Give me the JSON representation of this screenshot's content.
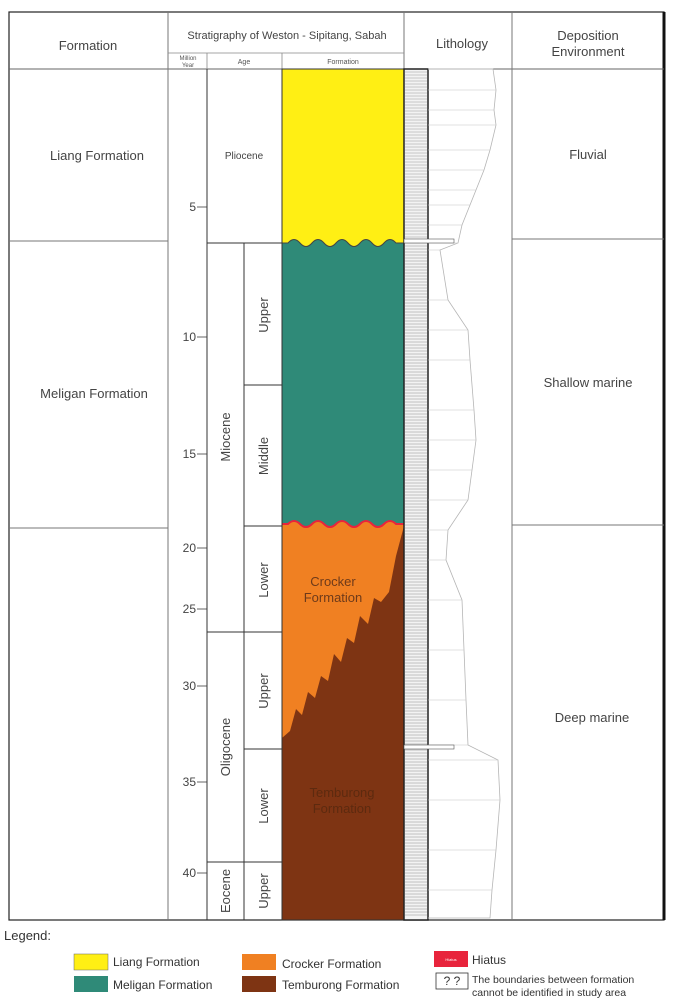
{
  "headers": {
    "formation": "Formation",
    "stratigraphy": "Stratigraphy of Weston - Sipitang, Sabah",
    "million_year": [
      "Million",
      "Year"
    ],
    "age": "Age",
    "sub_formation": "Formation",
    "lithology": "Lithology",
    "deposition": [
      "Deposition",
      "Environment"
    ]
  },
  "left_formations": [
    "Liang Formation",
    "Meligan Formation"
  ],
  "million_year_ticks": [
    "5",
    "10",
    "15",
    "20",
    "25",
    "30",
    "35",
    "40"
  ],
  "epochs": [
    "Pliocene",
    "Miocene",
    "Oligocene",
    "Eocene"
  ],
  "subages": [
    "Upper",
    "Middle",
    "Lower",
    "Upper",
    "Lower",
    "Upper"
  ],
  "formation_labels": {
    "crocker": [
      "Crocker",
      "Formation"
    ],
    "temburong": [
      "Temburong",
      "Formation"
    ]
  },
  "environments": [
    "Fluvial",
    "Shallow marine",
    "Deep marine"
  ],
  "legend": {
    "title": "Legend:",
    "items": [
      "Liang Formation",
      "Meligan Formation",
      "Crocker Formation",
      "Temburong Formation"
    ],
    "hiatus_label": "Hiatus",
    "hiatus_swatch_text": "Hiatus",
    "unknown_symbol": "? ?",
    "unknown_text": [
      "The boundaries between formation",
      "cannot be identified in study area"
    ]
  },
  "colors": {
    "liang": "#ffef14",
    "meligan": "#2f8a78",
    "crocker": "#f08022",
    "temburong": "#7e3413",
    "hiatus": "#e8243c",
    "border": "#333333"
  }
}
